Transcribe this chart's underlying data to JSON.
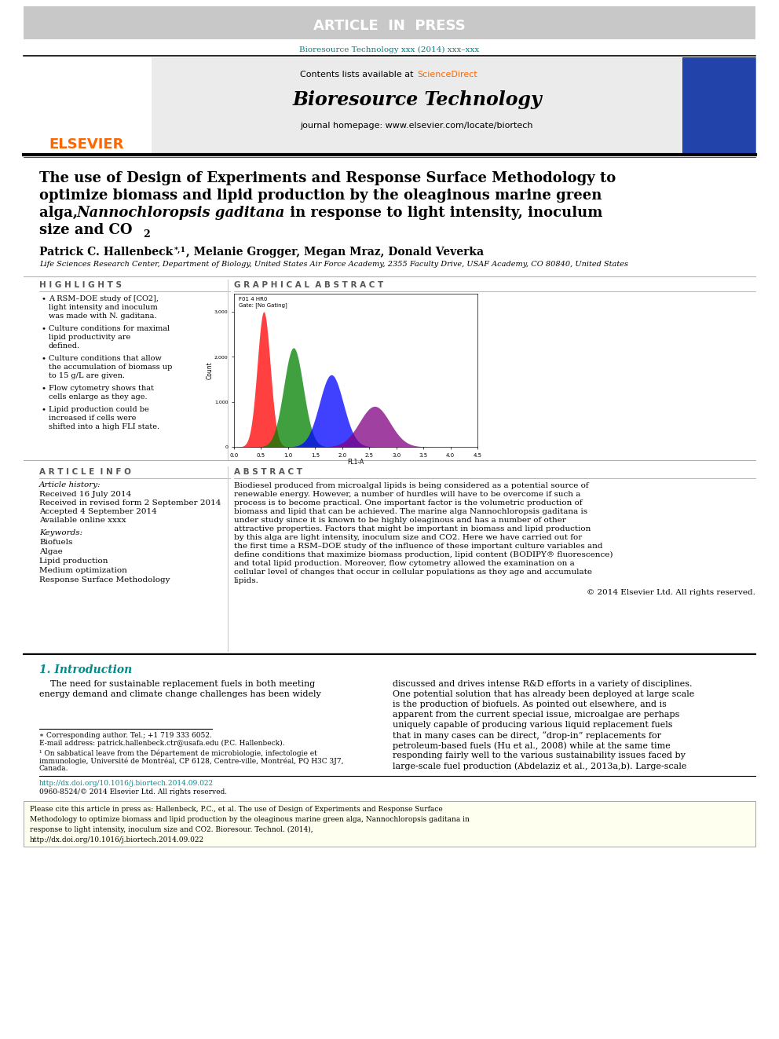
{
  "article_in_press_bg": "#c8c8c8",
  "article_in_press_text": "ARTICLE  IN  PRESS",
  "journal_ref_text": "Bioresource Technology xxx (2014) xxx–xxx",
  "journal_ref_color": "#008080",
  "contents_text": "Contents lists available at ",
  "science_direct_text": "ScienceDirect",
  "science_direct_color": "#FF6600",
  "journal_title": "Bioresource Technology",
  "journal_homepage": "journal homepage: www.elsevier.com/locate/biortech",
  "header_bg": "#e8e8e8",
  "affiliation": "Life Sciences Research Center, Department of Biology, United States Air Force Academy, 2355 Faculty Drive, USAF Academy, CO 80840, United States",
  "highlights": [
    "A RSM–DOE study of [CO2], light intensity and inoculum was made with N. gaditana.",
    "Culture conditions for maximal lipid productivity are defined.",
    "Culture conditions that allow the accumulation of biomass up to 15 g/L are given.",
    "Flow cytometry shows that cells enlarge as they age.",
    "Lipid production could be increased if cells were shifted into a high FLI state."
  ],
  "received_text": "Received 16 July 2014",
  "revised_text": "Received in revised form 2 September 2014",
  "accepted_text": "Accepted 4 September 2014",
  "available_text": "Available online xxxx",
  "keywords": [
    "Biofuels",
    "Algae",
    "Lipid production",
    "Medium optimization",
    "Response Surface Methodology"
  ],
  "abstract_text": "Biodiesel produced from microalgal lipids is being considered as a potential source of renewable energy. However, a number of hurdles will have to be overcome if such a process is to become practical. One important factor is the volumetric production of biomass and lipid that can be achieved. The marine alga Nannochloropsis gaditana is under study since it is known to be highly oleaginous and has a number of other attractive properties. Factors that might be important in biomass and lipid production by this alga are light intensity, inoculum size and CO2. Here we have carried out for the first time a RSM–DOE study of the influence of these important culture variables and define conditions that maximize biomass production, lipid content (BODIPY® fluorescence) and total lipid production. Moreover, flow cytometry allowed the examination on a cellular level of changes that occur in cellular populations as they age and accumulate lipids.",
  "copyright_text": "© 2014 Elsevier Ltd. All rights reserved.",
  "doi_text": "http://dx.doi.org/10.1016/j.biortech.2014.09.022",
  "issn_text": "0960-8524/© 2014 Elsevier Ltd. All rights reserved.",
  "footer_text": "Please cite this article in press as: Hallenbeck, P.C., et al. The use of Design of Experiments and Response Surface Methodology to optimize biomass and lipid production by the oleaginous marine green alga, Nannochloropsis gaditana in response to light intensity, inoculum size and CO2. Bioresour. Technol. (2014), http://dx.doi.org/10.1016/j.biortech.2014.09.022",
  "footer_bg": "#fffff0",
  "elsevier_orange": "#FF6600",
  "section_title_color": "#555555",
  "teal_color": "#008B8B",
  "gray_bg": "#ebebeb",
  "intro_col1_lines": [
    "    The need for sustainable replacement fuels in both meeting",
    "energy demand and climate change challenges has been widely"
  ],
  "intro_col2_lines": [
    "discussed and drives intense R&D efforts in a variety of disciplines.",
    "One potential solution that has already been deployed at large scale",
    "is the production of biofuels. As pointed out elsewhere, and is",
    "apparent from the current special issue, microalgae are perhaps",
    "uniquely capable of producing various liquid replacement fuels",
    "that in many cases can be direct, “drop-in” replacements for",
    "petroleum-based fuels (Hu et al., 2008) while at the same time",
    "responding fairly well to the various sustainability issues faced by",
    "large-scale fuel production (Abdelaziz et al., 2013a,b). Large-scale"
  ]
}
